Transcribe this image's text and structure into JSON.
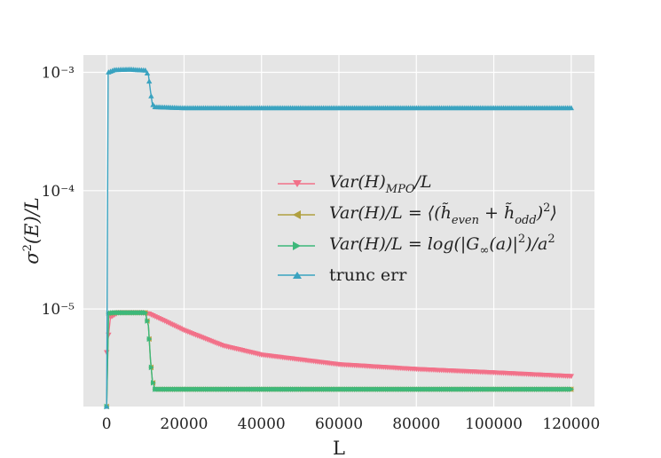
{
  "chart_data": {
    "type": "line",
    "title": "",
    "xlabel": "L",
    "ylabel": "σ²(E)/L",
    "yscale": "log",
    "xlim": [
      -6000,
      126000
    ],
    "ylim": [
      1.5e-06,
      0.0014
    ],
    "grid": true,
    "legend_position": "center-right",
    "x_ticks": [
      0,
      20000,
      40000,
      60000,
      80000,
      100000,
      120000
    ],
    "x_tick_labels": [
      "0",
      "20000",
      "40000",
      "60000",
      "80000",
      "100000",
      "120000"
    ],
    "y_ticks": [
      1e-05,
      0.0001,
      0.001
    ],
    "y_tick_labels": [
      "10⁻⁵",
      "10⁻⁴",
      "10⁻³"
    ],
    "series": [
      {
        "name": "Var(H)_MPO/L",
        "color": "#f27189",
        "marker": "triangle-down",
        "x": [
          0,
          1000,
          3000,
          6000,
          9000,
          11000,
          14000,
          20000,
          30000,
          40000,
          60000,
          80000,
          100000,
          120000
        ],
        "y": [
          4.3e-06,
          8.5e-06,
          9.3e-06,
          9.3e-06,
          9.3e-06,
          9.1e-06,
          8.2e-06,
          6.6e-06,
          4.9e-06,
          4.1e-06,
          3.4e-06,
          3.1e-06,
          2.9e-06,
          2.7e-06
        ]
      },
      {
        "name": "Var(H)/L = ⟨(h̃_even + h̃_odd)²⟩",
        "color": "#b0a040",
        "marker": "triangle-left",
        "x": [
          0,
          500,
          2000,
          6000,
          10000,
          10800,
          11300,
          11800,
          12500,
          20000,
          40000,
          60000,
          80000,
          100000,
          120000
        ],
        "y": [
          1e-06,
          9.2e-06,
          9.3e-06,
          9.3e-06,
          9.3e-06,
          7.2e-06,
          3.8e-06,
          2.5e-06,
          2.1e-06,
          2.1e-06,
          2.1e-06,
          2.1e-06,
          2.1e-06,
          2.1e-06,
          2.1e-06
        ]
      },
      {
        "name": "Var(H)/L = log(|G∞(a)|²)/a²",
        "color": "#3db87a",
        "marker": "triangle-right",
        "x": [
          0,
          500,
          2000,
          6000,
          10000,
          10800,
          11300,
          11800,
          12500,
          20000,
          40000,
          60000,
          80000,
          100000,
          120000
        ],
        "y": [
          1e-06,
          9.2e-06,
          9.3e-06,
          9.3e-06,
          9.3e-06,
          7.2e-06,
          3.8e-06,
          2.5e-06,
          2.1e-06,
          2.1e-06,
          2.1e-06,
          2.1e-06,
          2.1e-06,
          2.1e-06,
          2.1e-06
        ]
      },
      {
        "name": "trunc err",
        "color": "#3aa3c0",
        "marker": "triangle-up",
        "x": [
          0,
          400,
          2000,
          6000,
          10000,
          10800,
          11300,
          11800,
          12500,
          20000,
          40000,
          60000,
          80000,
          100000,
          120000
        ],
        "y": [
          1e-06,
          0.001,
          0.00105,
          0.00106,
          0.00104,
          0.00095,
          0.0007,
          0.00054,
          0.00051,
          0.0005,
          0.0005,
          0.0005,
          0.0005,
          0.0005,
          0.0005
        ]
      }
    ]
  }
}
